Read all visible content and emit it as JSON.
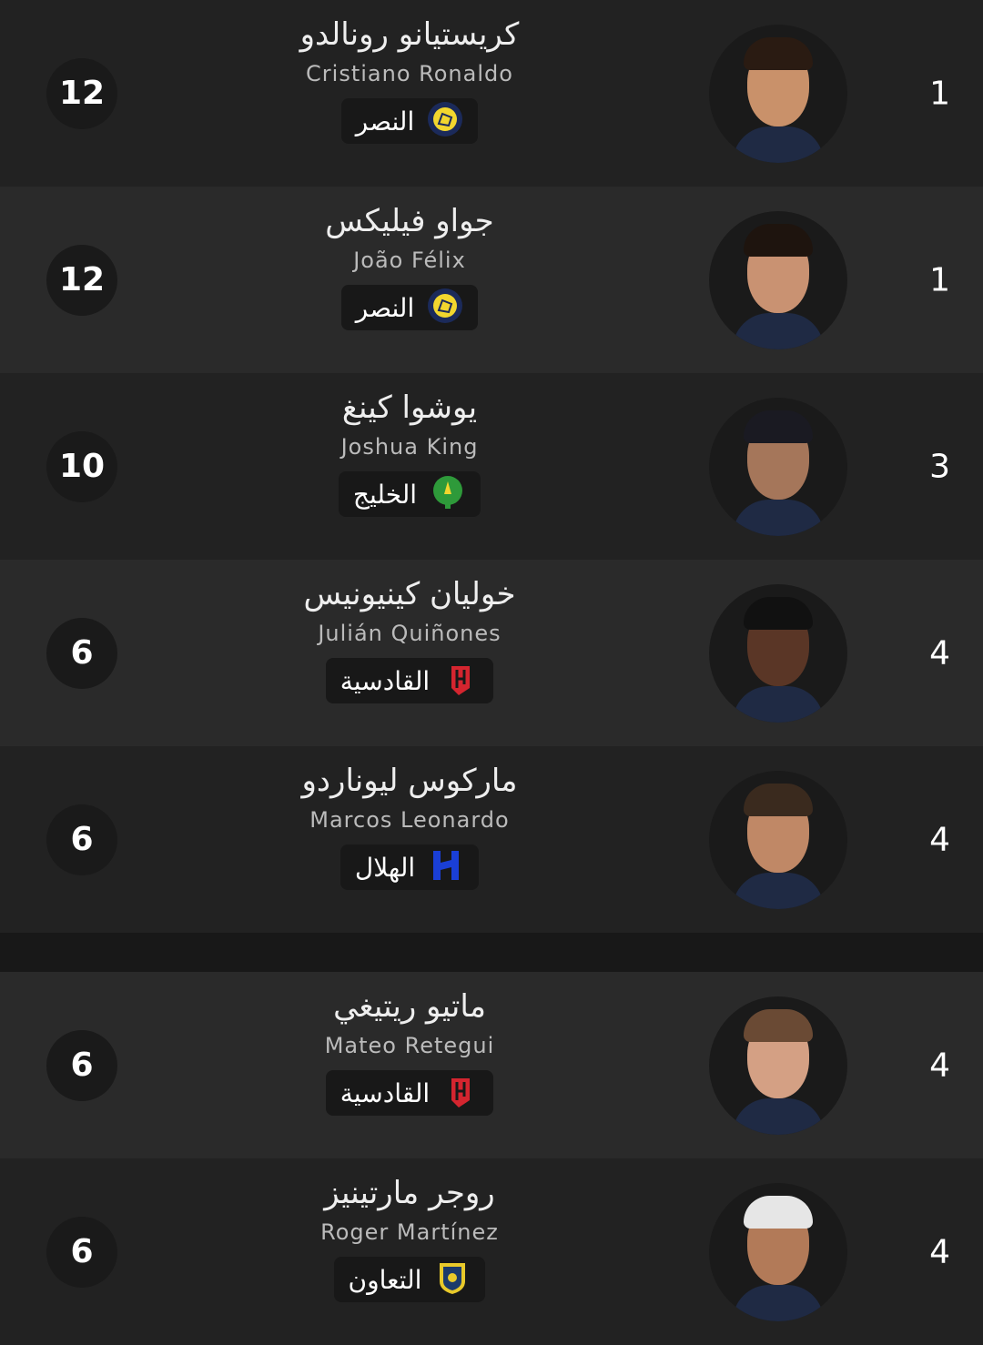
{
  "players": [
    {
      "rank": "1",
      "ar_name": "كريستيانو رونالدو",
      "en_name": "Cristiano Ronaldo",
      "team": "النصر",
      "team_logo": "al-nassr-logo",
      "goals": "12",
      "skin": "#c9916a",
      "hair": "#2a1b12"
    },
    {
      "rank": "1",
      "ar_name": "جواو فيليكس",
      "en_name": "João Félix",
      "team": "النصر",
      "team_logo": "al-nassr-logo",
      "goals": "12",
      "skin": "#c99272",
      "hair": "#1e140e"
    },
    {
      "rank": "3",
      "ar_name": "يوشوا كينغ",
      "en_name": "Joshua King",
      "team": "الخليج",
      "team_logo": "al-khaleej-logo",
      "goals": "10",
      "skin": "#a5765a",
      "hair": "#1a1a22"
    },
    {
      "rank": "4",
      "ar_name": "خوليان كينيونيس",
      "en_name": "Julián Quiñones",
      "team": "القادسية",
      "team_logo": "al-qadsiah-logo",
      "goals": "6",
      "skin": "#5a3626",
      "hair": "#111"
    },
    {
      "rank": "4",
      "ar_name": "ماركوس ليوناردو",
      "en_name": "Marcos Leonardo",
      "team": "الهلال",
      "team_logo": "al-hilal-logo",
      "goals": "6",
      "skin": "#c08866",
      "hair": "#3a2a1e"
    },
    {
      "rank": "4",
      "ar_name": "ماتيو ريتيغي",
      "en_name": "Mateo Retegui",
      "team": "القادسية",
      "team_logo": "al-qadsiah-logo",
      "goals": "6",
      "skin": "#d4a084",
      "hair": "#6a4a34"
    },
    {
      "rank": "4",
      "ar_name": "روجر مارتينيز",
      "en_name": "Roger Martínez",
      "team": "التعاون",
      "team_logo": "al-taawoun-logo",
      "goals": "6",
      "skin": "#b27a58",
      "hair": "#e6e6e6"
    }
  ],
  "colors": {
    "row_dark": "#222222",
    "row_light": "#2a2a2a",
    "badge_bg": "#181818",
    "nassr": "#f2d62e",
    "khaleej": "#2e9a3a",
    "qadsiah": "#d4252f",
    "hilal": "#1a3fd6",
    "taawoun": "#e8c92a"
  }
}
